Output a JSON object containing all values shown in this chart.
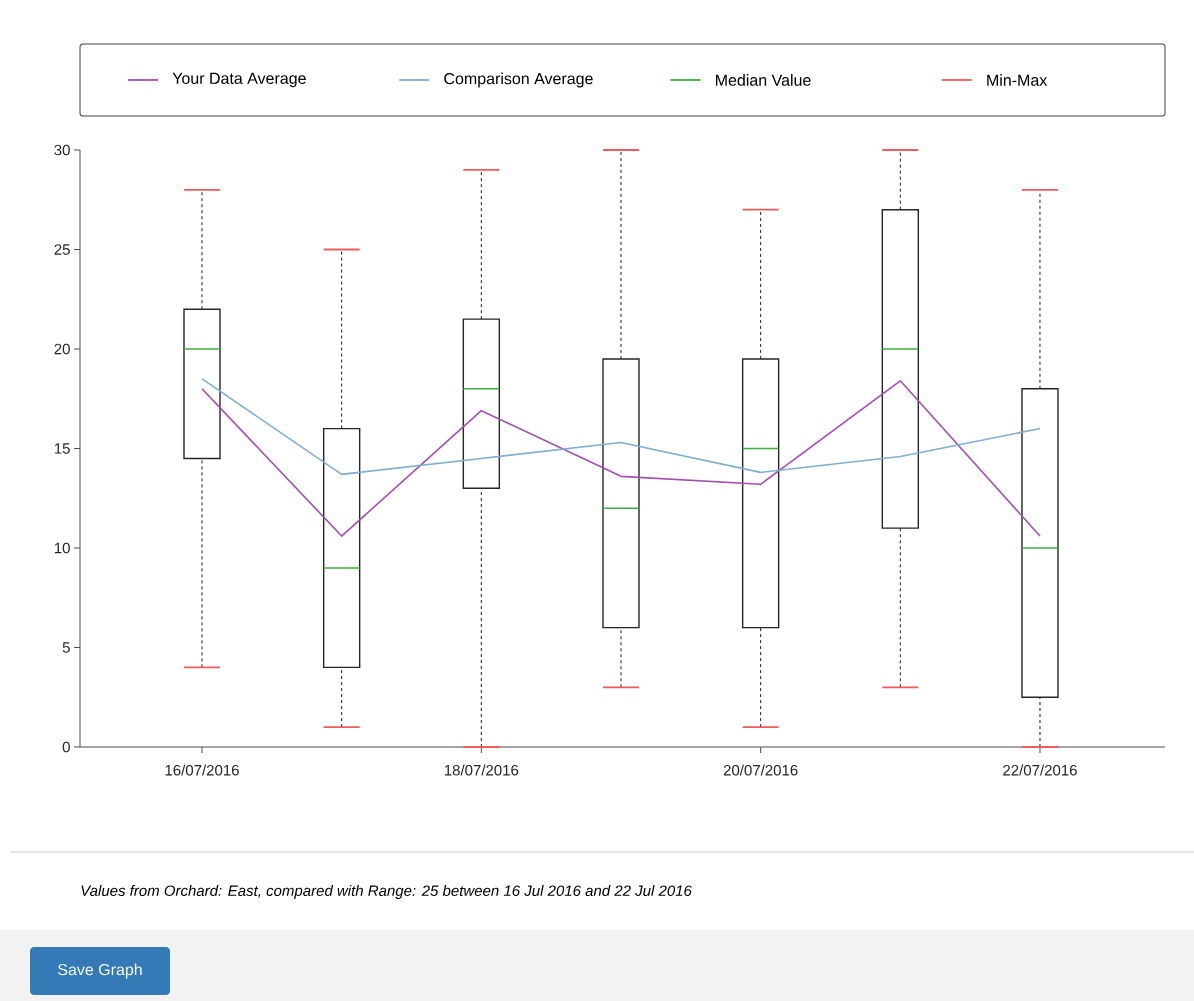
{
  "chart_data": {
    "type": "box",
    "categories": [
      "16/07/2016",
      null,
      "18/07/2016",
      null,
      "20/07/2016",
      null,
      "22/07/2016"
    ],
    "ylim": [
      0,
      30
    ],
    "yticks": [
      0,
      5,
      10,
      15,
      20,
      25,
      30
    ],
    "legend": "top",
    "series": [
      {
        "name": "Your Data Average",
        "type": "line",
        "color": "#a54db3",
        "values": [
          18,
          10.6,
          16.9,
          13.6,
          13.2,
          18.4,
          10.6
        ]
      },
      {
        "name": "Comparison Average",
        "type": "line",
        "color": "#7eaed3",
        "values": [
          18.5,
          13.7,
          14.5,
          15.3,
          13.8,
          14.6,
          16
        ]
      },
      {
        "color": "#262626",
        "boxes": [
          {
            "low": 4,
            "q1": 14.5,
            "median": 20,
            "q3": 22,
            "high": 28
          },
          {
            "low": 1,
            "q1": 4,
            "median": 9,
            "q3": 16,
            "high": 25
          },
          {
            "low": 0,
            "q1": 13,
            "median": 18,
            "q3": 21.5,
            "high": 29
          },
          {
            "low": 3,
            "q1": 6,
            "median": 12,
            "q3": 19.5,
            "high": 30
          },
          {
            "low": 1,
            "q1": 6,
            "median": 15,
            "q3": 19.5,
            "high": 27
          },
          {
            "low": 3,
            "q1": 11,
            "median": 20,
            "q3": 27,
            "high": 30
          },
          {
            "low": 0,
            "q1": 2.5,
            "median": 10,
            "q3": 18,
            "high": 28
          }
        ]
      }
    ],
    "annotations": [
      "Values from Orchard: East, compared with Range: 25 between 16 Jul 2016 and 22 Jul 2016",
      "Save Graph",
      "Median Value",
      "Min-Max"
    ]
  }
}
